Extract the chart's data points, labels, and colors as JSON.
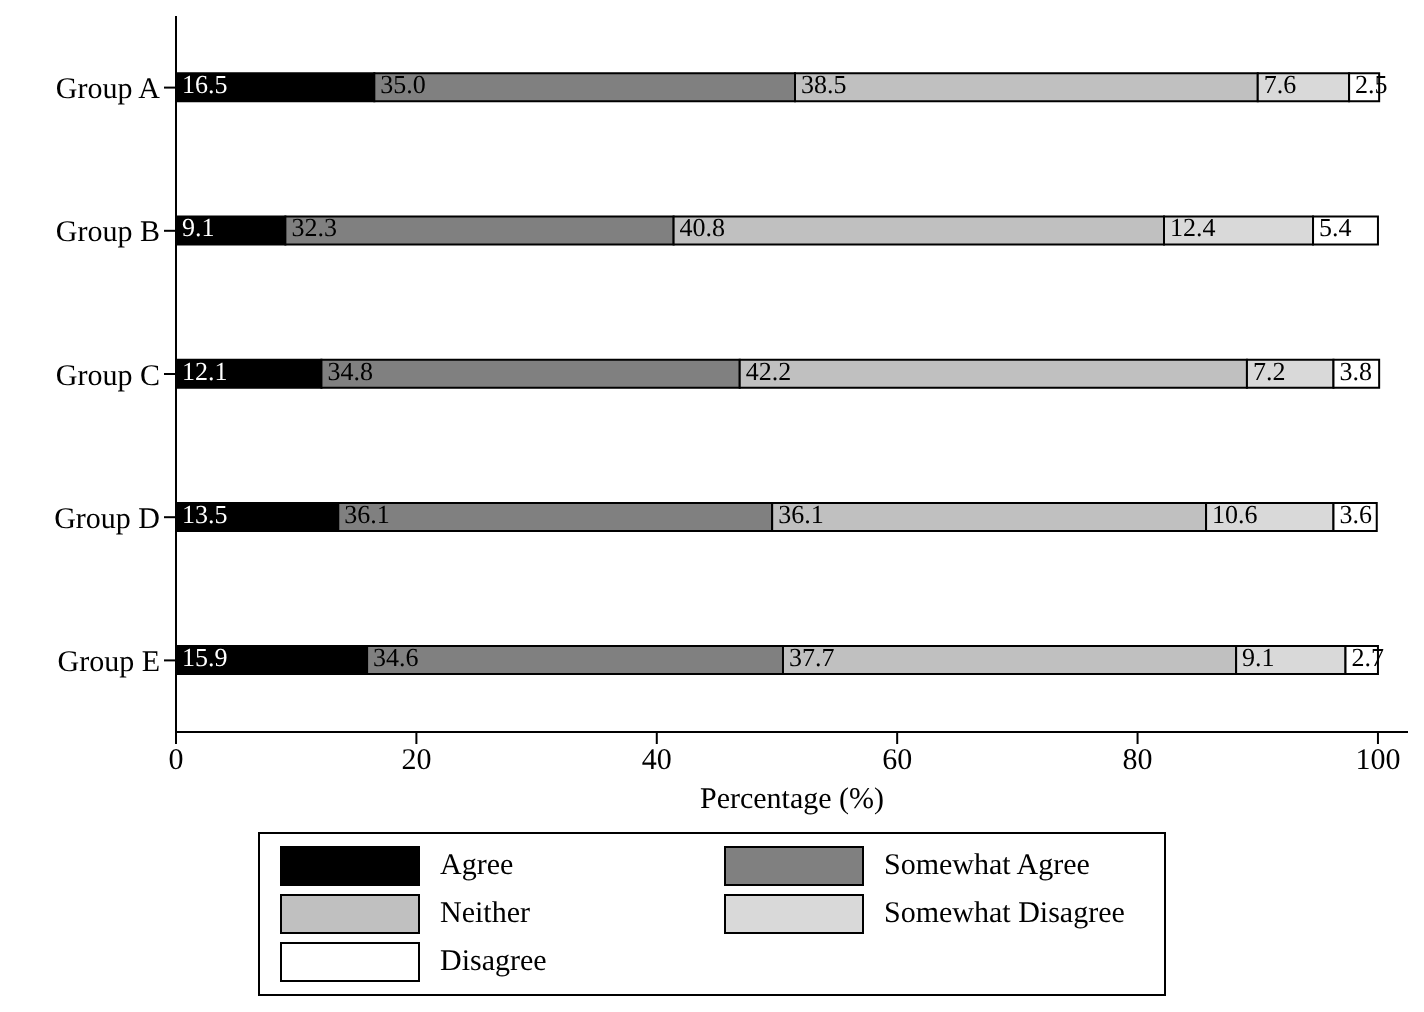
{
  "chart_data": {
    "type": "bar",
    "orientation": "horizontal",
    "stacked": true,
    "xlabel": "Percentage (%)",
    "categories": [
      "Group A",
      "Group B",
      "Group C",
      "Group D",
      "Group E"
    ],
    "series": [
      {
        "name": "Agree",
        "color": "#000000",
        "values": [
          16.5,
          9.1,
          12.1,
          13.5,
          15.9
        ],
        "value_labels": [
          "16.5",
          "9.1",
          "12.1",
          "13.5",
          "15.9"
        ]
      },
      {
        "name": "Somewhat Agree",
        "color": "#808080",
        "values": [
          35.0,
          32.3,
          34.8,
          36.1,
          34.6
        ],
        "value_labels": [
          "35.0",
          "32.3",
          "34.8",
          "36.1",
          "34.6"
        ]
      },
      {
        "name": "Neither",
        "color": "#c0c0c0",
        "values": [
          38.5,
          40.8,
          42.2,
          36.1,
          37.7
        ],
        "value_labels": [
          "38.5",
          "40.8",
          "42.2",
          "36.1",
          "37.7"
        ]
      },
      {
        "name": "Somewhat Disagree",
        "color": "#d9d9d9",
        "values": [
          7.6,
          12.4,
          7.2,
          10.6,
          9.1
        ],
        "value_labels": [
          "7.6",
          "12.4",
          "7.2",
          "10.6",
          "9.1"
        ]
      },
      {
        "name": "Disagree",
        "color": "#ffffff",
        "values": [
          2.5,
          5.4,
          3.8,
          3.6,
          2.7
        ],
        "value_labels": [
          "2.5",
          "5.4",
          "3.8",
          "3.6",
          "2.7"
        ]
      }
    ],
    "xlim": [
      0,
      102.5
    ],
    "xticks": [
      0,
      20,
      40,
      60,
      80,
      100
    ],
    "grid": false,
    "legend": "bottom"
  }
}
